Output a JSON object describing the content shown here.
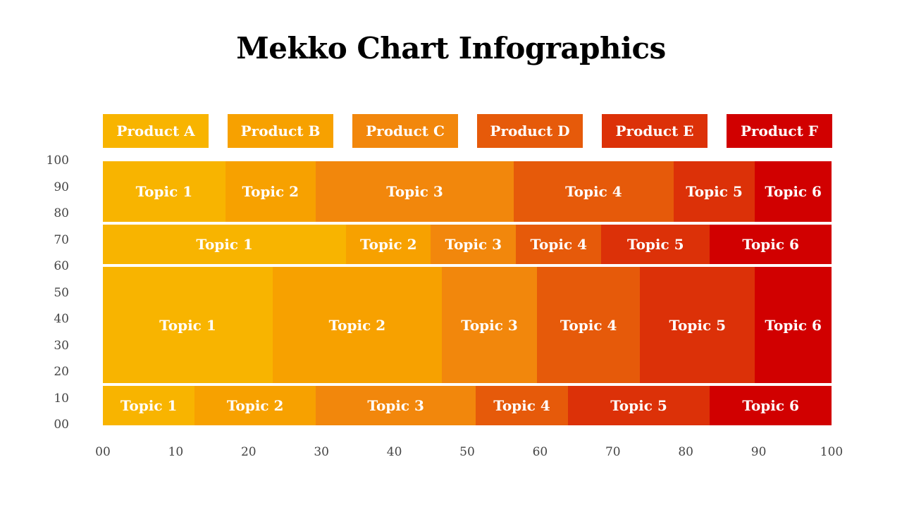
{
  "title": "Mekko Chart Infographics",
  "colors": [
    "#F8B400",
    "#F7A100",
    "#F2870C",
    "#E65A0A",
    "#DC3108",
    "#D10000"
  ],
  "legend": [
    "Product A",
    "Product B",
    "Product C",
    "Product D",
    "Product E",
    "Product F"
  ],
  "chart_data": {
    "type": "bar",
    "subtype": "mekko",
    "title": "Mekko Chart Infographics",
    "xlabel": "",
    "ylabel": "",
    "xlim": [
      0,
      100
    ],
    "ylim": [
      0,
      100
    ],
    "x_ticks": [
      "00",
      "10",
      "20",
      "30",
      "40",
      "50",
      "60",
      "70",
      "80",
      "90",
      "100"
    ],
    "y_ticks": [
      "00",
      "10",
      "20",
      "30",
      "40",
      "50",
      "60",
      "70",
      "80",
      "90",
      "100"
    ],
    "legend_position": "top",
    "rows": [
      {
        "y_range": [
          77,
          100
        ],
        "segments": [
          {
            "label": "Topic 1",
            "x0": 0,
            "x1": 16.8
          },
          {
            "label": "Topic 2",
            "x0": 16.8,
            "x1": 29.2
          },
          {
            "label": "Topic 3",
            "x0": 29.2,
            "x1": 56.4
          },
          {
            "label": "Topic 4",
            "x0": 56.4,
            "x1": 78.3
          },
          {
            "label": "Topic 5",
            "x0": 78.3,
            "x1": 89.5
          },
          {
            "label": "Topic 6",
            "x0": 89.5,
            "x1": 100
          }
        ]
      },
      {
        "y_range": [
          61,
          76
        ],
        "segments": [
          {
            "label": "Topic 1",
            "x0": 0,
            "x1": 33.4
          },
          {
            "label": "Topic 2",
            "x0": 33.4,
            "x1": 45
          },
          {
            "label": "Topic 3",
            "x0": 45,
            "x1": 56.7
          },
          {
            "label": "Topic 4",
            "x0": 56.7,
            "x1": 68.4
          },
          {
            "label": "Topic 5",
            "x0": 68.4,
            "x1": 83.3
          },
          {
            "label": "Topic 6",
            "x0": 83.3,
            "x1": 100
          }
        ]
      },
      {
        "y_range": [
          16,
          60
        ],
        "segments": [
          {
            "label": "Topic 1",
            "x0": 0,
            "x1": 23.3
          },
          {
            "label": "Topic 2",
            "x0": 23.3,
            "x1": 46.5
          },
          {
            "label": "Topic 3",
            "x0": 46.5,
            "x1": 59.6
          },
          {
            "label": "Topic 4",
            "x0": 59.6,
            "x1": 73.7
          },
          {
            "label": "Topic 5",
            "x0": 73.7,
            "x1": 89.5
          },
          {
            "label": "Topic 6",
            "x0": 89.5,
            "x1": 100
          }
        ]
      },
      {
        "y_range": [
          0,
          15
        ],
        "segments": [
          {
            "label": "Topic 1",
            "x0": 0,
            "x1": 12.6
          },
          {
            "label": "Topic 2",
            "x0": 12.6,
            "x1": 29.2
          },
          {
            "label": "Topic 3",
            "x0": 29.2,
            "x1": 51.2
          },
          {
            "label": "Topic 4",
            "x0": 51.2,
            "x1": 63.8
          },
          {
            "label": "Topic 5",
            "x0": 63.8,
            "x1": 83.3
          },
          {
            "label": "Topic 6",
            "x0": 83.3,
            "x1": 100
          }
        ]
      }
    ]
  }
}
